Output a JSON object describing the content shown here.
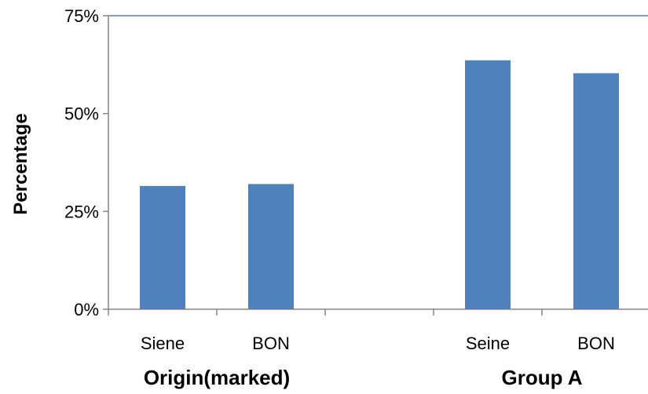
{
  "chart_data": {
    "type": "bar",
    "ylabel": "Percentage",
    "ylim": [
      0,
      75
    ],
    "yticks": [
      0,
      25,
      50,
      75
    ],
    "ytick_labels": [
      "0%",
      "25%",
      "50%",
      "75%"
    ],
    "groups": [
      {
        "label": "Origin(marked)",
        "categories": [
          "Siene",
          "BON"
        ],
        "values": [
          31.5,
          32.0
        ]
      },
      {
        "label": "Group A",
        "categories": [
          "Seine",
          "BON"
        ],
        "values": [
          63.6,
          60.3
        ]
      }
    ],
    "bar_color": "#4f81bd",
    "grid": false,
    "legend": "none"
  }
}
